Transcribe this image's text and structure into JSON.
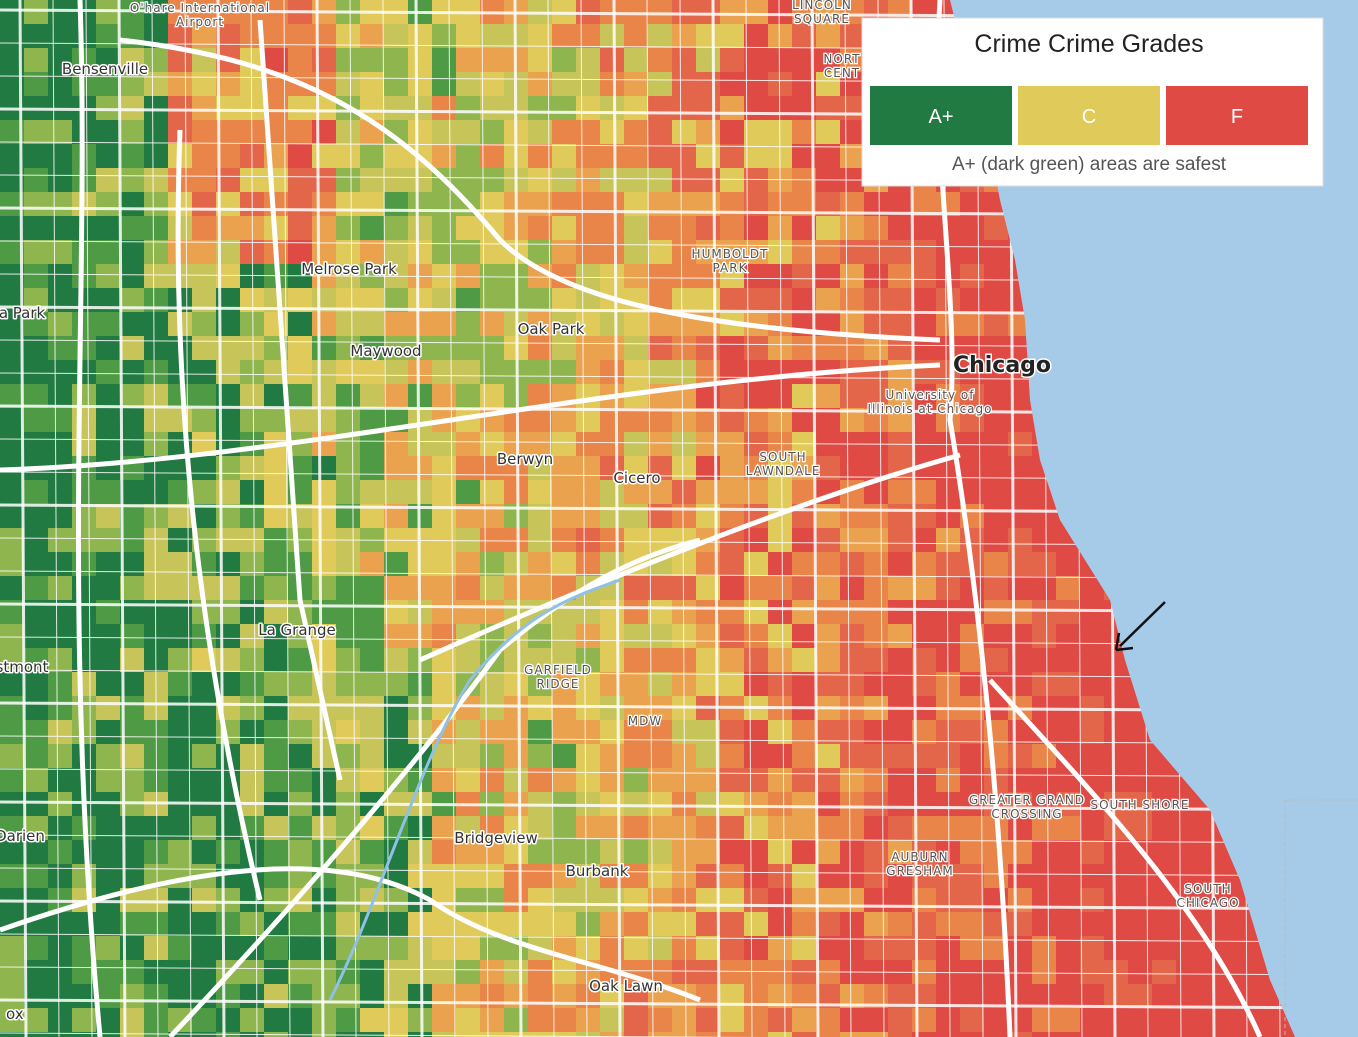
{
  "legend": {
    "title": "Crime Crime Grades",
    "items": [
      {
        "label": "A+",
        "color": "#217a41"
      },
      {
        "label": "C",
        "color": "#e0cb5a"
      },
      {
        "label": "F",
        "color": "#e04a45"
      }
    ],
    "note": "A+ (dark green) areas are safest"
  },
  "places": [
    {
      "lines": [
        "O'hare International",
        "Airport"
      ]
    },
    {
      "lines": [
        "Bensenville"
      ]
    },
    {
      "lines": [
        "Melrose Park"
      ]
    },
    {
      "lines": [
        "a Park"
      ]
    },
    {
      "lines": [
        "Oak Park"
      ]
    },
    {
      "lines": [
        "Maywood"
      ]
    },
    {
      "lines": [
        "Berwyn"
      ]
    },
    {
      "lines": [
        "Cicero"
      ]
    },
    {
      "lines": [
        "La Grange"
      ]
    },
    {
      "lines": [
        "stmont"
      ]
    },
    {
      "lines": [
        "Darien"
      ]
    },
    {
      "lines": [
        "Bridgeview"
      ]
    },
    {
      "lines": [
        "Burbank"
      ]
    },
    {
      "lines": [
        "Oak Lawn"
      ]
    },
    {
      "lines": [
        "Chicago"
      ]
    },
    {
      "lines": [
        "University of",
        "Illinois at Chicago"
      ]
    },
    {
      "lines": [
        "HUMBOLDT",
        "PARK"
      ]
    },
    {
      "lines": [
        "SOUTH",
        "LAWNDALE"
      ]
    },
    {
      "lines": [
        "GARFIELD",
        "RIDGE"
      ]
    },
    {
      "lines": [
        "MDW"
      ]
    },
    {
      "lines": [
        "GREATER GRAND",
        "CROSSING"
      ]
    },
    {
      "lines": [
        "SOUTH SHORE"
      ]
    },
    {
      "lines": [
        "AUBURN",
        "GRESHAM"
      ]
    },
    {
      "lines": [
        "SOUTH",
        "CHICAGO"
      ]
    },
    {
      "lines": [
        "LINCOLN",
        "SQUARE"
      ]
    },
    {
      "lines": [
        "NORT",
        "CENT"
      ]
    },
    {
      "lines": [
        "ox"
      ]
    }
  ]
}
